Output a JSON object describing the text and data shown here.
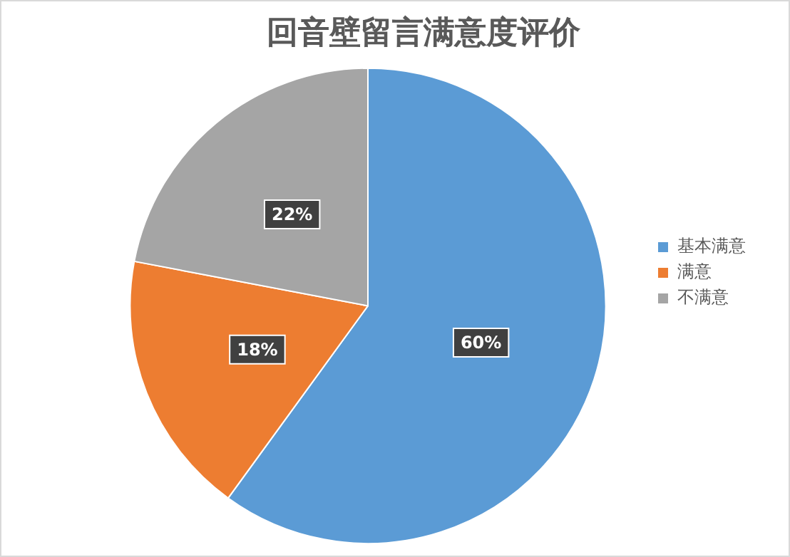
{
  "chart_data": {
    "type": "pie",
    "title": "回音壁留言满意度评价",
    "categories": [
      "基本满意",
      "满意",
      "不满意"
    ],
    "values": [
      60,
      18,
      22
    ],
    "value_labels": [
      "60%",
      "18%",
      "22%"
    ],
    "colors": [
      "#5b9bd5",
      "#ed7d31",
      "#a5a5a5"
    ],
    "legend": "right"
  }
}
